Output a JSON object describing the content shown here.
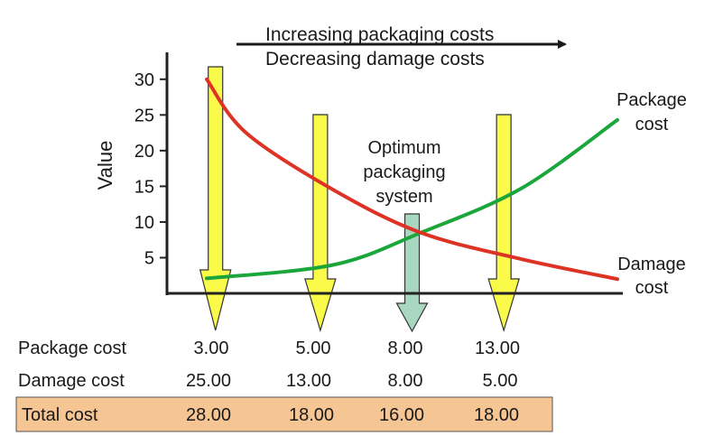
{
  "chart_data": {
    "type": "line",
    "ylabel": "Value",
    "ylim": [
      0,
      32
    ],
    "yticks": [
      "30",
      "25",
      "20",
      "15",
      "10",
      "5"
    ],
    "ytick_values": [
      30,
      25,
      20,
      15,
      10,
      5
    ],
    "x_relative_range": [
      0,
      1
    ],
    "series": [
      {
        "name": "Package cost",
        "label_lines": [
          "Package",
          "cost"
        ],
        "color": "#1aa63a",
        "x_relative": [
          0.06,
          0.35,
          0.55,
          0.78,
          1.0
        ],
        "values": [
          2.1,
          4.0,
          8.5,
          14.7,
          24.3
        ]
      },
      {
        "name": "Damage cost",
        "label_lines": [
          "Damage",
          "cost"
        ],
        "color": "#dd3325",
        "x_relative": [
          0.06,
          0.15,
          0.35,
          0.55,
          0.78,
          1.0
        ],
        "values": [
          30,
          22.5,
          14.5,
          8.5,
          4.8,
          2.0
        ]
      }
    ],
    "arrows": [
      {
        "x_relative": 0.08,
        "color": "#fafa4a",
        "kind": "yellow"
      },
      {
        "x_relative": 0.32,
        "color": "#fafa4a",
        "kind": "yellow"
      },
      {
        "x_relative": 0.53,
        "color": "#a8d8bf",
        "kind": "green"
      },
      {
        "x_relative": 0.74,
        "color": "#fafa4a",
        "kind": "yellow"
      }
    ],
    "annotations": {
      "trend_line1": "Increasing packaging costs",
      "trend_line2": "Decreasing damage costs",
      "optimum_lines": [
        "Optimum",
        "packaging",
        "system"
      ]
    },
    "grid": false,
    "legend": "none"
  },
  "table": {
    "rows": [
      {
        "label": "Package cost",
        "values": [
          "3.00",
          "5.00",
          "8.00",
          "13.00"
        ],
        "highlight": false
      },
      {
        "label": "Damage cost",
        "values": [
          "25.00",
          "13.00",
          "8.00",
          "5.00"
        ],
        "highlight": false
      },
      {
        "label": "Total cost",
        "values": [
          "28.00",
          "18.00",
          "16.00",
          "18.00"
        ],
        "highlight": true
      }
    ],
    "highlight_color": "#f5c594"
  }
}
